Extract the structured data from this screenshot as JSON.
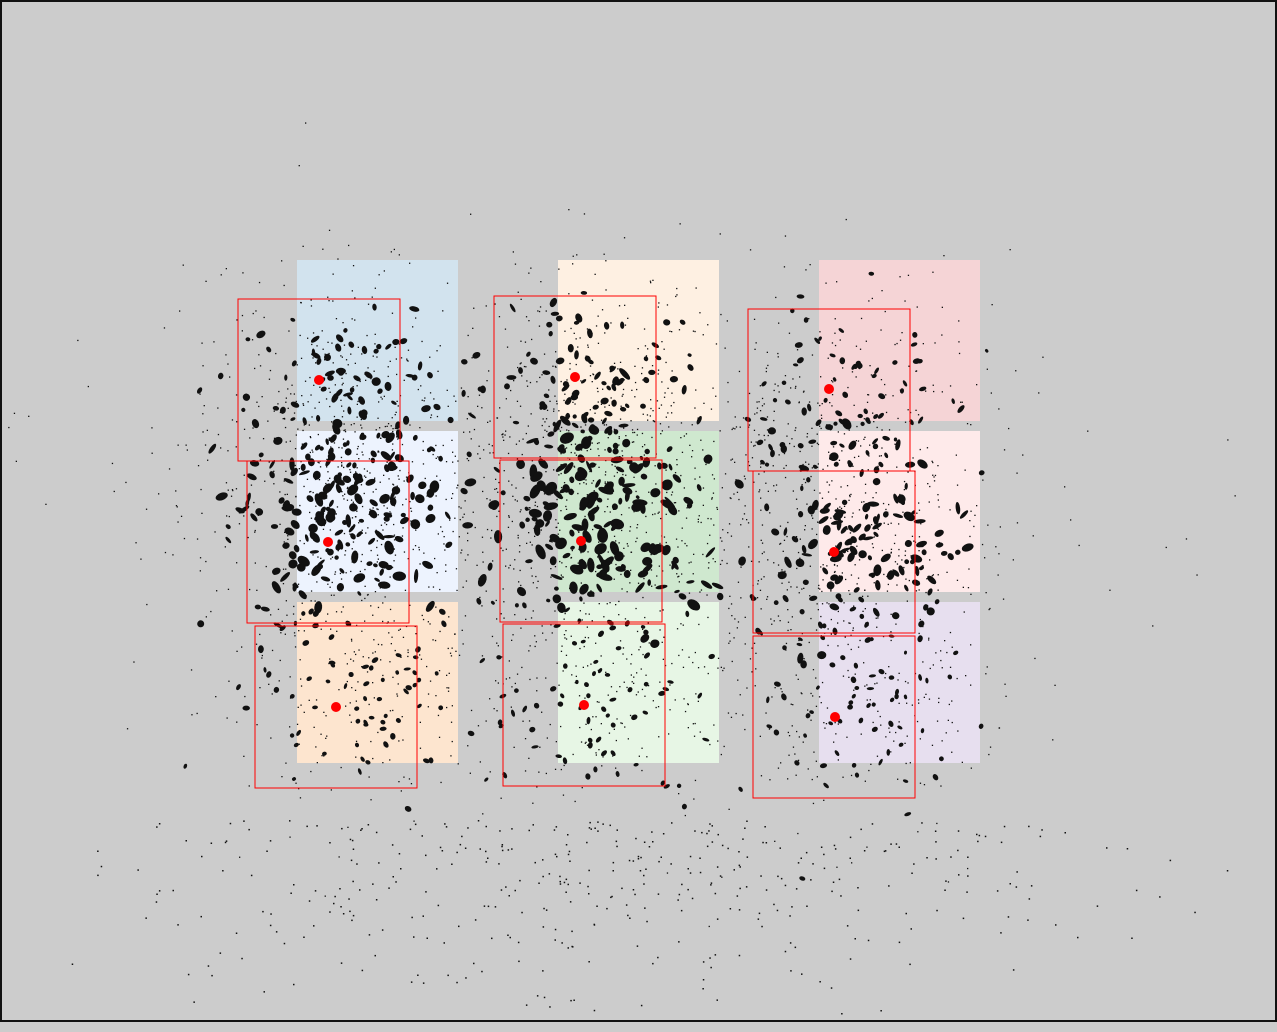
{
  "diagram": {
    "background_color": "#cccccc",
    "frame_color": "#111111",
    "box_color": "#ff0000",
    "dot_color": "#ff0000",
    "ink_color": "#111111",
    "tiles": [
      {
        "id": "blue",
        "color": "#d2e3ee"
      },
      {
        "id": "peach",
        "color": "#fef0e2"
      },
      {
        "id": "pink",
        "color": "#f5d4d6"
      },
      {
        "id": "light-blue",
        "color": "#edf3fe"
      },
      {
        "id": "green",
        "color": "#cfe8cf"
      },
      {
        "id": "light-pink",
        "color": "#feeaea"
      },
      {
        "id": "orange",
        "color": "#fde5cf"
      },
      {
        "id": "light-green",
        "color": "#e7f6e5"
      },
      {
        "id": "lavender",
        "color": "#e7dfef"
      }
    ],
    "density_clusters": [
      {
        "id": "top-left",
        "density": 0.55
      },
      {
        "id": "top-center",
        "density": 0.5
      },
      {
        "id": "top-right",
        "density": 0.35
      },
      {
        "id": "middle-left",
        "density": 0.85
      },
      {
        "id": "middle-center",
        "density": 1.0
      },
      {
        "id": "middle-right",
        "density": 0.7
      },
      {
        "id": "bottom-left",
        "density": 0.3
      },
      {
        "id": "bottom-center",
        "density": 0.3
      },
      {
        "id": "bottom-right",
        "density": 0.3
      }
    ]
  }
}
